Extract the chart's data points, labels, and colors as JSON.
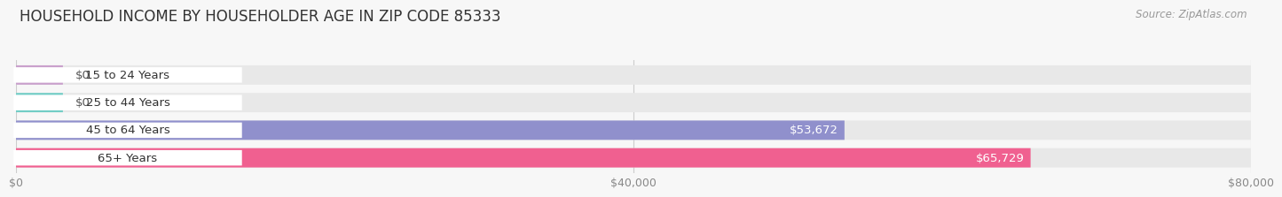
{
  "title": "HOUSEHOLD INCOME BY HOUSEHOLDER AGE IN ZIP CODE 85333",
  "source": "Source: ZipAtlas.com",
  "categories": [
    "15 to 24 Years",
    "25 to 44 Years",
    "45 to 64 Years",
    "65+ Years"
  ],
  "values": [
    0,
    0,
    53672,
    65729
  ],
  "bar_colors": [
    "#c9a0cc",
    "#72cdc6",
    "#9090cc",
    "#f06090"
  ],
  "label_colors": [
    "#555555",
    "#555555",
    "#ffffff",
    "#ffffff"
  ],
  "value_labels": [
    "$0",
    "$0",
    "$53,672",
    "$65,729"
  ],
  "xlim": [
    0,
    80000
  ],
  "xticks": [
    0,
    40000,
    80000
  ],
  "xticklabels": [
    "$0",
    "$40,000",
    "$80,000"
  ],
  "background_color": "#f7f7f7",
  "bar_bg_color": "#e8e8e8",
  "title_fontsize": 12,
  "source_fontsize": 8.5,
  "label_fontsize": 9.5,
  "tick_fontsize": 9
}
